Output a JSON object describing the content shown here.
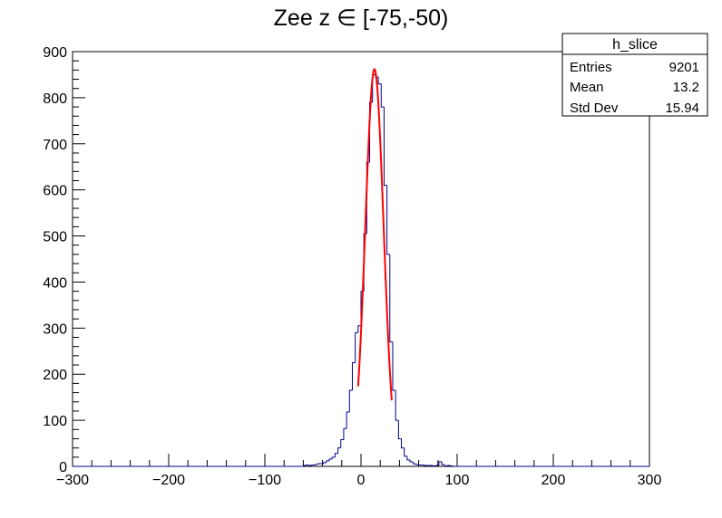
{
  "chart_data": {
    "type": "histogram",
    "title": "Zee z ∈ [-75,-50)",
    "xlabel": "",
    "ylabel": "",
    "xlim": [
      -300,
      300
    ],
    "ylim": [
      0,
      900
    ],
    "x_ticks": [
      -300,
      -200,
      -100,
      0,
      100,
      200,
      300
    ],
    "y_ticks": [
      0,
      100,
      200,
      300,
      400,
      500,
      600,
      700,
      800,
      900
    ],
    "grid": false,
    "series": [
      {
        "kind": "histogram",
        "color": "#00008b",
        "bin_width": 3,
        "bins": [
          {
            "x": -60,
            "y": 2
          },
          {
            "x": -57,
            "y": 3
          },
          {
            "x": -54,
            "y": 2
          },
          {
            "x": -51,
            "y": 3
          },
          {
            "x": -48,
            "y": 4
          },
          {
            "x": -45,
            "y": 6
          },
          {
            "x": -42,
            "y": 6
          },
          {
            "x": -39,
            "y": 8
          },
          {
            "x": -36,
            "y": 12
          },
          {
            "x": -33,
            "y": 16
          },
          {
            "x": -30,
            "y": 20
          },
          {
            "x": -27,
            "y": 28
          },
          {
            "x": -24,
            "y": 40
          },
          {
            "x": -21,
            "y": 58
          },
          {
            "x": -18,
            "y": 82
          },
          {
            "x": -15,
            "y": 118
          },
          {
            "x": -12,
            "y": 165
          },
          {
            "x": -9,
            "y": 225
          },
          {
            "x": -6,
            "y": 290
          },
          {
            "x": -3,
            "y": 305
          },
          {
            "x": 0,
            "y": 380
          },
          {
            "x": 3,
            "y": 505
          },
          {
            "x": 6,
            "y": 660
          },
          {
            "x": 9,
            "y": 790
          },
          {
            "x": 12,
            "y": 850
          },
          {
            "x": 15,
            "y": 845
          },
          {
            "x": 18,
            "y": 830
          },
          {
            "x": 21,
            "y": 780
          },
          {
            "x": 24,
            "y": 610
          },
          {
            "x": 27,
            "y": 460
          },
          {
            "x": 30,
            "y": 270
          },
          {
            "x": 33,
            "y": 165
          },
          {
            "x": 36,
            "y": 100
          },
          {
            "x": 39,
            "y": 60
          },
          {
            "x": 42,
            "y": 40
          },
          {
            "x": 45,
            "y": 22
          },
          {
            "x": 48,
            "y": 14
          },
          {
            "x": 51,
            "y": 10
          },
          {
            "x": 54,
            "y": 6
          },
          {
            "x": 57,
            "y": 4
          },
          {
            "x": 60,
            "y": 3
          },
          {
            "x": 63,
            "y": 3
          },
          {
            "x": 66,
            "y": 2
          },
          {
            "x": 69,
            "y": 2
          },
          {
            "x": 72,
            "y": 2
          },
          {
            "x": 75,
            "y": 1
          },
          {
            "x": 78,
            "y": 2
          },
          {
            "x": 81,
            "y": 10
          },
          {
            "x": 84,
            "y": 4
          },
          {
            "x": 87,
            "y": 1
          },
          {
            "x": 90,
            "y": 2
          },
          {
            "x": 93,
            "y": 1
          }
        ]
      },
      {
        "kind": "fit",
        "shape": "gaussian",
        "color": "#ff0000",
        "amplitude": 862,
        "mean": 14,
        "sigma": 9.5,
        "x_range": [
          -3,
          32
        ]
      }
    ],
    "stats_box": {
      "name": "h_slice",
      "rows": [
        {
          "label": "Entries",
          "value": "9201"
        },
        {
          "label": "Mean",
          "value": "13.2"
        },
        {
          "label": "Std Dev",
          "value": "15.94"
        }
      ]
    }
  }
}
